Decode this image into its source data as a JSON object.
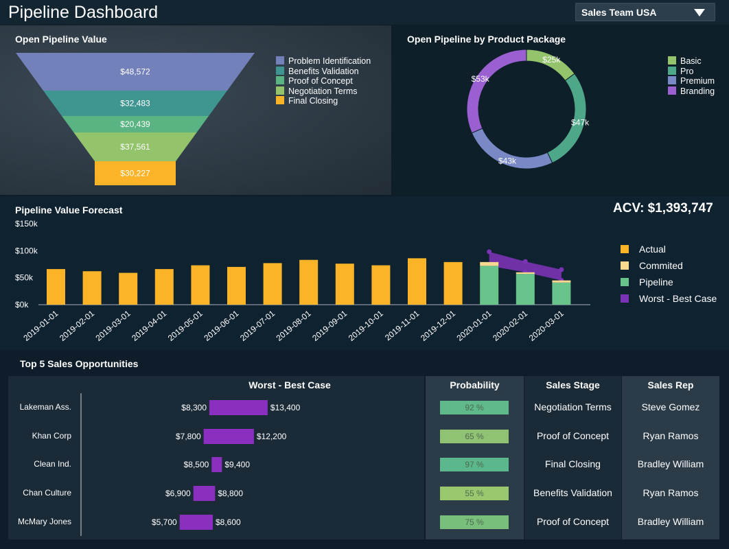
{
  "header": {
    "title": "Pipeline Dashboard",
    "team_select": "Sales Team USA"
  },
  "funnel": {
    "title": "Open Pipeline Value",
    "stages": [
      {
        "name": "Problem Identification",
        "value": "$48,572",
        "color": "#7281b9"
      },
      {
        "name": "Benefits Validation",
        "value": "$32,483",
        "color": "#3f9690"
      },
      {
        "name": "Proof of Concept",
        "value": "$20,439",
        "color": "#5ab382"
      },
      {
        "name": "Negotiation Terms",
        "value": "$37,561",
        "color": "#93c36b"
      },
      {
        "name": "Final Closing",
        "value": "$30,227",
        "color": "#fbb427"
      }
    ]
  },
  "donut": {
    "title": "Open Pipeline by Product Package",
    "slices": [
      {
        "name": "Basic",
        "value": 25,
        "label": "$25k",
        "color": "#93c36b"
      },
      {
        "name": "Pro",
        "value": 47,
        "label": "$47k",
        "color": "#4fa78a"
      },
      {
        "name": "Premium",
        "value": 43,
        "label": "$43k",
        "color": "#7889c5"
      },
      {
        "name": "Branding",
        "value": 53,
        "label": "$53k",
        "color": "#9a5fd0"
      }
    ]
  },
  "forecast": {
    "title": "Pipeline Value Forecast",
    "acv": "ACV: $1,393,747",
    "legend": [
      {
        "name": "Actual",
        "color": "#fbb427"
      },
      {
        "name": "Commited",
        "color": "#f9d98f"
      },
      {
        "name": "Pipeline",
        "color": "#68c48a"
      },
      {
        "name": "Worst - Best Case",
        "color": "#7b33b5"
      }
    ]
  },
  "chart_data": {
    "type": "bar",
    "title": "Pipeline Value Forecast",
    "categories": [
      "2019-01-01",
      "2019-02-01",
      "2019-03-01",
      "2019-04-01",
      "2019-05-01",
      "2019-06-01",
      "2019-07-01",
      "2019-08-01",
      "2019-09-01",
      "2019-10-01",
      "2019-11-01",
      "2019-12-01",
      "2020-01-01",
      "2020-02-01",
      "2020-03-01"
    ],
    "series": [
      {
        "name": "Actual",
        "values": [
          66,
          62,
          59,
          66,
          73,
          70,
          77,
          83,
          76,
          73,
          86,
          79,
          0,
          0,
          0
        ]
      },
      {
        "name": "Pipeline",
        "values": [
          0,
          0,
          0,
          0,
          0,
          0,
          0,
          0,
          0,
          0,
          0,
          0,
          72,
          57,
          41
        ]
      },
      {
        "name": "Commited",
        "values": [
          0,
          0,
          0,
          0,
          0,
          0,
          0,
          0,
          0,
          0,
          0,
          0,
          7,
          3,
          4
        ]
      },
      {
        "name": "Worst - Best Case",
        "low": [
          null,
          null,
          null,
          null,
          null,
          null,
          null,
          null,
          null,
          null,
          null,
          null,
          72,
          60,
          45
        ],
        "high": [
          null,
          null,
          null,
          null,
          null,
          null,
          null,
          null,
          null,
          null,
          null,
          null,
          98,
          80,
          65
        ]
      }
    ],
    "yticks": [
      "$0k",
      "$50k",
      "$100k",
      "$150k"
    ],
    "ylim": [
      0,
      150
    ]
  },
  "opportunities": {
    "title": "Top 5 Sales Opportunities",
    "headers": {
      "range": "Worst - Best Case",
      "probability": "Probability",
      "stage": "Sales Stage",
      "rep": "Sales Rep"
    },
    "rows": [
      {
        "name": "Lakeman Ass.",
        "worst": 8300,
        "best": 13400,
        "worst_label": "$8,300",
        "best_label": "$13,400",
        "probability": "92 %",
        "prob_color": "#5fb98a",
        "stage": "Negotiation Terms",
        "rep": "Steve Gomez"
      },
      {
        "name": "Khan Corp",
        "worst": 7800,
        "best": 12200,
        "worst_label": "$7,800",
        "best_label": "$12,200",
        "probability": "65 %",
        "prob_color": "#8fc373",
        "stage": "Proof of Concept",
        "rep": "Ryan Ramos"
      },
      {
        "name": "Clean Ind.",
        "worst": 8500,
        "best": 9400,
        "worst_label": "$8,500",
        "best_label": "$9,400",
        "probability": "97 %",
        "prob_color": "#5bb78c",
        "stage": "Final Closing",
        "rep": "Bradley William"
      },
      {
        "name": "Chan Culture",
        "worst": 6900,
        "best": 8800,
        "worst_label": "$6,900",
        "best_label": "$8,800",
        "probability": "55 %",
        "prob_color": "#9ac86e",
        "stage": "Benefits Validation",
        "rep": "Ryan Ramos"
      },
      {
        "name": "McMary Jones",
        "worst": 5700,
        "best": 8600,
        "worst_label": "$5,700",
        "best_label": "$8,600",
        "probability": "75 %",
        "prob_color": "#79bf7c",
        "stage": "Proof of Concept",
        "rep": "Bradley William"
      }
    ]
  }
}
